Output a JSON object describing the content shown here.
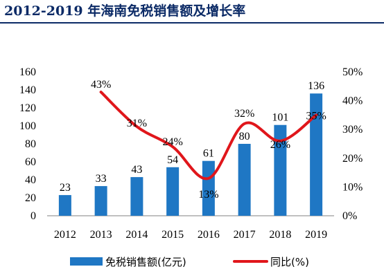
{
  "title": "2012-2019 年海南免税销售额及增长率",
  "colors": {
    "bar": "#1f77c4",
    "line": "#e0161b",
    "title": "#0b2a66"
  },
  "chart_data": {
    "type": "bar",
    "categories": [
      "2012",
      "2013",
      "2014",
      "2015",
      "2016",
      "2017",
      "2018",
      "2019"
    ],
    "series": [
      {
        "name": "免税销售额(亿元)",
        "type": "bar",
        "axis": "left",
        "values": [
          23,
          33,
          43,
          54,
          61,
          80,
          101,
          136
        ],
        "labels": [
          "23",
          "33",
          "43",
          "54",
          "61",
          "80",
          "101",
          "136"
        ]
      },
      {
        "name": "同比(%)",
        "type": "line",
        "axis": "right",
        "values": [
          null,
          43,
          31,
          24,
          13,
          32,
          26,
          35
        ],
        "labels": [
          "",
          "43%",
          "31%",
          "24%",
          "13%",
          "32%",
          "26%",
          "35%"
        ]
      }
    ],
    "y_left": {
      "min": 0,
      "max": 160,
      "ticks": [
        "0",
        "20",
        "40",
        "60",
        "80",
        "100",
        "120",
        "140",
        "160"
      ]
    },
    "y_right": {
      "min": 0,
      "max": 50,
      "ticks": [
        "0%",
        "10%",
        "20%",
        "30%",
        "40%",
        "50%"
      ]
    },
    "legend_position": "bottom",
    "grid": false
  }
}
